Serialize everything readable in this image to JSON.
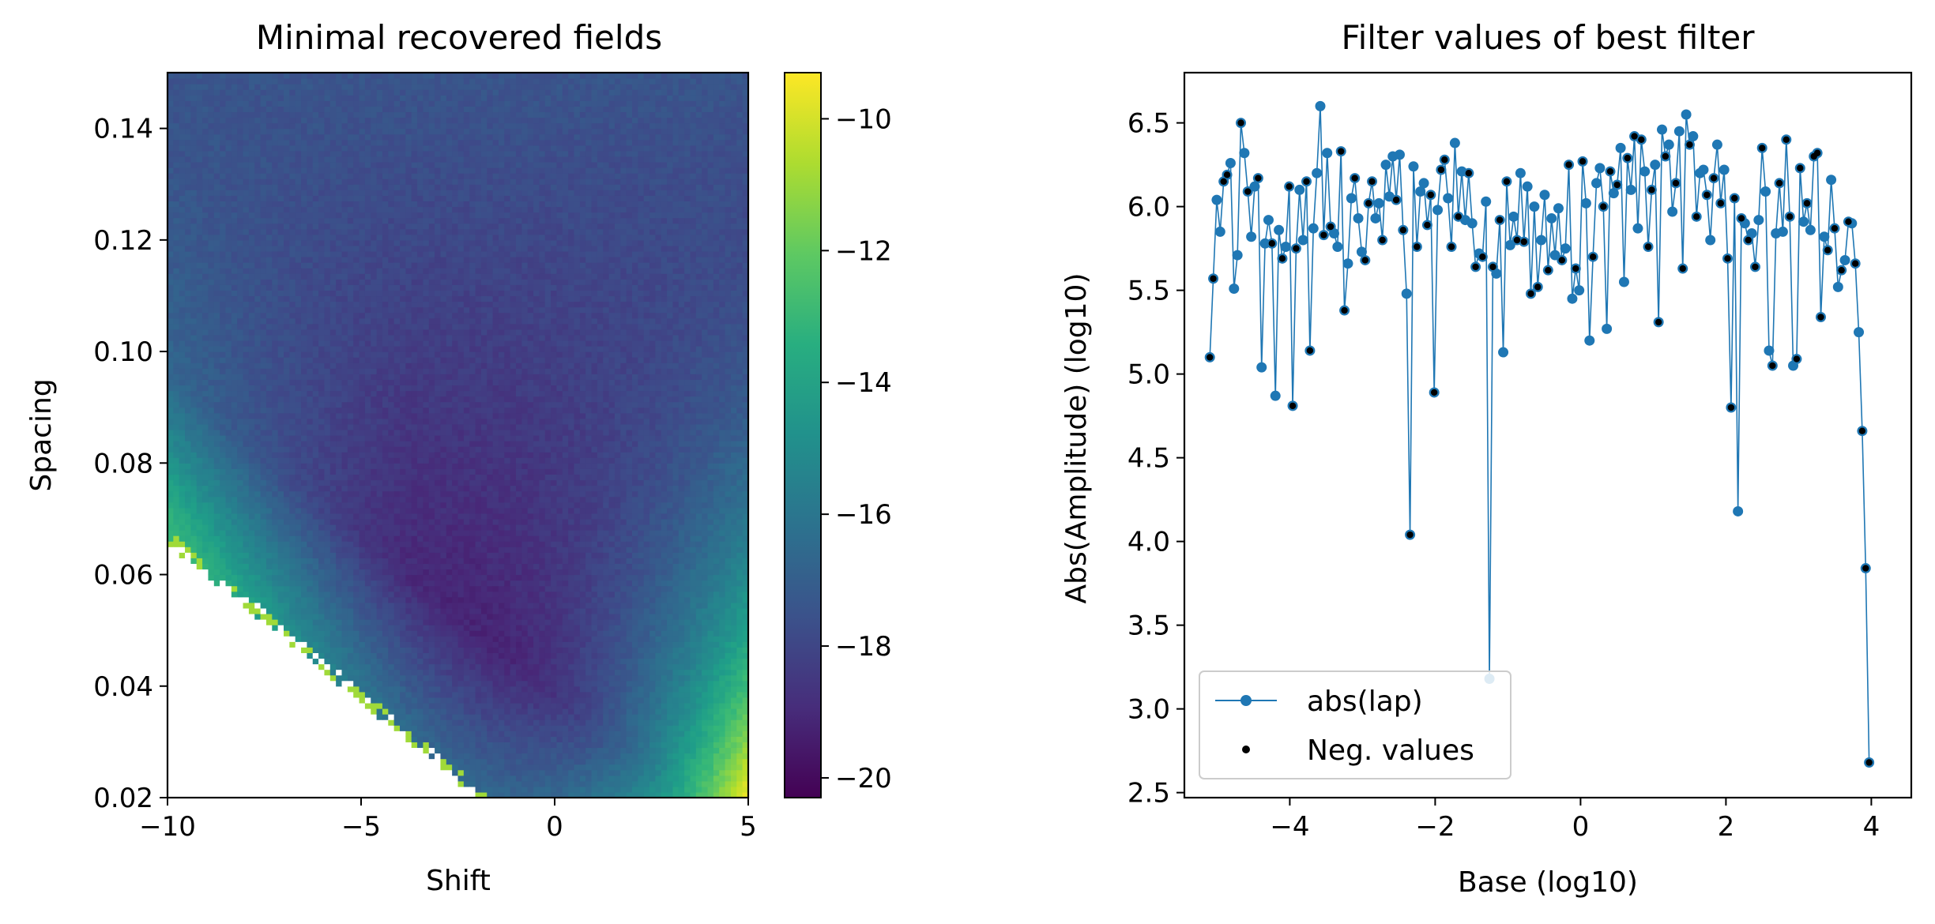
{
  "chart_data": [
    {
      "type": "heatmap",
      "title": "Minimal recovered fields",
      "xlabel": "Shift",
      "ylabel": "Spacing",
      "xlim": [
        -10,
        5
      ],
      "ylim": [
        0.02,
        0.15
      ],
      "xticks": [
        {
          "value": -10,
          "label": "−10"
        },
        {
          "value": -5,
          "label": "−5"
        },
        {
          "value": 0,
          "label": "0"
        },
        {
          "value": 5,
          "label": "5"
        }
      ],
      "yticks": [
        {
          "value": 0.02,
          "label": "0.02"
        },
        {
          "value": 0.04,
          "label": "0.04"
        },
        {
          "value": 0.06,
          "label": "0.06"
        },
        {
          "value": 0.08,
          "label": "0.08"
        },
        {
          "value": 0.1,
          "label": "0.10"
        },
        {
          "value": 0.12,
          "label": "0.12"
        },
        {
          "value": 0.14,
          "label": "0.14"
        }
      ],
      "colormap": "viridis",
      "colorbar": {
        "range": [
          -20.3,
          -9.3
        ],
        "ticks": [
          {
            "value": -10,
            "label": "−10"
          },
          {
            "value": -12,
            "label": "−12"
          },
          {
            "value": -14,
            "label": "−14"
          },
          {
            "value": -16,
            "label": "−16"
          },
          {
            "value": -18,
            "label": "−18"
          },
          {
            "value": -20,
            "label": "−20"
          }
        ]
      },
      "grid_size": [
        100,
        130
      ],
      "description_of_field": "log10 of minimal recovered field; undefined (white) below the line spacing = 0.02 - 0.0057*(shift+2); minimum about -20 near shift -1, spacing 0.07; maximum about -9.3 at shift 5, spacing 0.02"
    },
    {
      "type": "line",
      "title": "Filter values of best filter",
      "xlabel": "Base (log10)",
      "ylabel": "Abs(Amplitude) (log10)",
      "xlim": [
        -5.45,
        4.55
      ],
      "ylim": [
        2.47,
        6.8
      ],
      "grid": false,
      "legend_position": "lower-left",
      "xticks": [
        {
          "value": -4,
          "label": "−4"
        },
        {
          "value": -2,
          "label": "−2"
        },
        {
          "value": 0,
          "label": "0"
        },
        {
          "value": 2,
          "label": "2"
        },
        {
          "value": 4,
          "label": "4"
        }
      ],
      "yticks": [
        {
          "value": 2.5,
          "label": "2.5"
        },
        {
          "value": 3.0,
          "label": "3.0"
        },
        {
          "value": 3.5,
          "label": "3.5"
        },
        {
          "value": 4.0,
          "label": "4.0"
        },
        {
          "value": 4.5,
          "label": "4.5"
        },
        {
          "value": 5.0,
          "label": "5.0"
        },
        {
          "value": 5.5,
          "label": "5.5"
        },
        {
          "value": 6.0,
          "label": "6.0"
        },
        {
          "value": 6.5,
          "label": "6.5"
        }
      ],
      "series": [
        {
          "name": "abs(lap)",
          "color": "#1f77b4",
          "x_start": -5.1,
          "x_end": 3.97,
          "values": [
            5.1,
            5.57,
            6.04,
            5.85,
            6.15,
            6.19,
            6.26,
            5.51,
            5.71,
            6.5,
            6.32,
            6.09,
            5.82,
            6.12,
            6.17,
            5.04,
            5.78,
            5.92,
            5.78,
            4.87,
            5.86,
            5.69,
            5.76,
            6.12,
            4.81,
            5.75,
            6.1,
            5.8,
            6.15,
            5.14,
            5.87,
            6.2,
            6.6,
            5.83,
            6.32,
            5.88,
            5.84,
            5.76,
            6.33,
            5.38,
            5.66,
            6.05,
            6.17,
            5.93,
            5.73,
            5.68,
            6.02,
            6.15,
            5.93,
            6.02,
            5.8,
            6.25,
            6.06,
            6.3,
            6.04,
            6.31,
            5.86,
            5.48,
            4.04,
            6.24,
            5.76,
            6.09,
            6.14,
            5.89,
            6.07,
            4.89,
            5.98,
            6.22,
            6.28,
            6.05,
            5.76,
            6.38,
            5.94,
            6.21,
            5.92,
            6.2,
            5.9,
            5.64,
            5.72,
            5.7,
            6.03,
            3.18,
            5.64,
            5.6,
            5.92,
            5.13,
            6.15,
            5.77,
            5.94,
            5.8,
            6.2,
            5.79,
            6.12,
            5.48,
            6.0,
            5.52,
            5.8,
            6.07,
            5.62,
            5.93,
            5.71,
            5.99,
            5.68,
            5.75,
            6.25,
            5.45,
            5.63,
            5.5,
            6.27,
            6.02,
            5.2,
            5.7,
            6.14,
            6.23,
            6.0,
            5.27,
            6.21,
            6.08,
            6.13,
            6.35,
            5.55,
            6.29,
            6.1,
            6.42,
            5.87,
            6.4,
            6.21,
            5.76,
            6.1,
            6.25,
            5.31,
            6.46,
            6.3,
            6.37,
            5.97,
            6.14,
            6.45,
            5.63,
            6.55,
            6.37,
            6.42,
            5.94,
            6.2,
            6.22,
            6.07,
            5.8,
            6.17,
            6.37,
            6.02,
            6.22,
            5.69,
            4.8,
            6.05,
            4.18,
            5.93,
            5.9,
            5.8,
            5.84,
            5.64,
            5.92,
            6.35,
            6.09,
            5.14,
            5.05,
            5.84,
            6.14,
            5.85,
            6.4,
            5.94,
            5.05,
            5.09,
            6.23,
            5.91,
            6.02,
            5.86,
            6.3,
            6.32,
            5.34,
            5.82,
            5.74,
            6.16,
            5.87,
            5.52,
            5.62,
            5.68,
            5.91,
            5.9,
            5.66,
            5.25,
            4.66,
            3.84,
            2.68
          ]
        },
        {
          "name": "Neg. values",
          "color": "#000000",
          "marker_only": true,
          "indices": [
            0,
            1,
            4,
            5,
            9,
            11,
            14,
            18,
            21,
            23,
            24,
            25,
            28,
            29,
            33,
            35,
            38,
            39,
            42,
            45,
            46,
            47,
            50,
            54,
            56,
            58,
            60,
            63,
            64,
            65,
            67,
            68,
            70,
            72,
            75,
            77,
            79,
            82,
            84,
            86,
            89,
            91,
            93,
            95,
            98,
            102,
            104,
            106,
            108,
            111,
            114,
            116,
            118,
            121,
            123,
            125,
            127,
            128,
            130,
            132,
            135,
            137,
            139,
            141,
            144,
            146,
            148,
            150,
            151,
            152,
            154,
            156,
            158,
            160,
            163,
            165,
            167,
            168,
            170,
            171,
            173,
            175,
            176,
            177,
            179,
            181,
            183,
            185,
            187,
            189,
            190,
            191,
            192
          ]
        }
      ]
    }
  ]
}
